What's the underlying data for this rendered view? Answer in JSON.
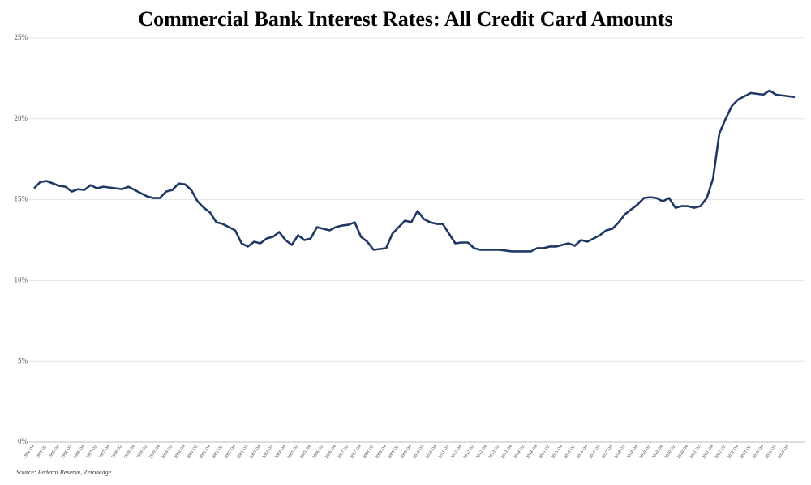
{
  "chart_data": {
    "type": "line",
    "title": "Commercial Bank Interest Rates: All Credit Card Amounts",
    "source": "Source: Federal Reserve, Zerohedge",
    "categories": [
      "1994 Q4",
      null,
      "1995 Q2",
      null,
      "1995 Q4",
      null,
      "1996 Q2",
      null,
      "1996 Q4",
      null,
      "1997 Q2",
      null,
      "1997 Q4",
      null,
      "1998 Q2",
      null,
      "1998 Q4",
      null,
      "1999 Q2",
      null,
      "1999 Q4",
      null,
      "2000 Q2",
      null,
      "2000 Q4",
      null,
      "2001 Q2",
      null,
      "2001 Q4",
      null,
      "2002 Q2",
      null,
      "2002 Q4",
      null,
      "2003 Q2",
      null,
      "2003 Q4",
      null,
      "2004 Q2",
      null,
      "2004 Q4",
      null,
      "2005 Q2",
      null,
      "2005 Q4",
      null,
      "2006 Q2",
      null,
      "2006 Q4",
      null,
      "2007 Q2",
      null,
      "2007 Q4",
      null,
      "2008 Q2",
      null,
      "2008 Q4",
      null,
      "2009 Q2",
      null,
      "2009 Q4",
      null,
      "2010 Q2",
      null,
      "2010 Q4",
      null,
      "2011 Q2",
      null,
      "2011 Q4",
      null,
      "2012 Q2",
      null,
      "2012 Q4",
      null,
      "2013 Q2",
      null,
      "2013 Q4",
      null,
      "2014 Q2",
      null,
      "2014 Q4",
      null,
      "2015 Q2",
      null,
      "2015 Q4",
      null,
      "2016 Q2",
      null,
      "2016 Q4",
      null,
      "2017 Q2",
      null,
      "2017 Q4",
      null,
      "2018 Q2",
      null,
      "2018 Q4",
      null,
      "2019 Q2",
      null,
      "2019 Q4",
      null,
      "2020 Q2",
      null,
      "2020 Q4",
      null,
      "2021 Q2",
      null,
      "2021 Q4",
      null,
      "2022 Q2",
      null,
      "2022 Q4",
      null,
      "2023 Q2",
      null,
      "2023 Q4",
      null,
      "2024 Q2",
      null,
      "2024 Q4",
      null
    ],
    "series": [
      {
        "color": "#1f3864",
        "values": [
          15.7,
          16.1,
          16.15,
          16.0,
          15.85,
          15.8,
          15.5,
          15.65,
          15.6,
          15.9,
          15.7,
          15.8,
          15.75,
          15.7,
          15.65,
          15.8,
          15.6,
          15.4,
          15.2,
          15.1,
          15.1,
          15.5,
          15.6,
          16.0,
          15.95,
          15.6,
          14.9,
          14.5,
          14.2,
          13.6,
          13.5,
          13.3,
          13.1,
          12.3,
          12.1,
          12.4,
          12.3,
          12.6,
          12.7,
          13.0,
          12.5,
          12.2,
          12.8,
          12.5,
          12.6,
          13.3,
          13.2,
          13.1,
          13.3,
          13.4,
          13.45,
          13.6,
          12.7,
          12.4,
          11.9,
          11.95,
          12.0,
          12.9,
          13.3,
          13.7,
          13.6,
          14.3,
          13.8,
          13.6,
          13.5,
          13.5,
          12.9,
          12.3,
          12.35,
          12.35,
          12.0,
          11.9,
          11.9,
          11.9,
          11.9,
          11.85,
          11.8,
          11.8,
          11.8,
          11.8,
          12.0,
          12.0,
          12.1,
          12.1,
          12.2,
          12.3,
          12.15,
          12.5,
          12.4,
          12.6,
          12.8,
          13.1,
          13.2,
          13.6,
          14.1,
          14.4,
          14.7,
          15.1,
          15.15,
          15.1,
          14.9,
          15.1,
          14.5,
          14.6,
          14.6,
          14.5,
          14.6,
          15.1,
          16.3,
          19.1,
          20.0,
          20.8,
          21.2,
          21.4,
          21.6,
          21.55,
          21.5,
          21.75,
          21.5,
          21.45,
          21.4,
          21.35
        ]
      }
    ],
    "ylim": [
      0,
      25
    ],
    "yticks": [
      {
        "value": 0,
        "label": "0%"
      },
      {
        "value": 5,
        "label": "5%"
      },
      {
        "value": 10,
        "label": "10%"
      },
      {
        "value": 15,
        "label": "15%"
      },
      {
        "value": 20,
        "label": "20%"
      },
      {
        "value": 25,
        "label": "25%"
      }
    ],
    "grid": true
  }
}
